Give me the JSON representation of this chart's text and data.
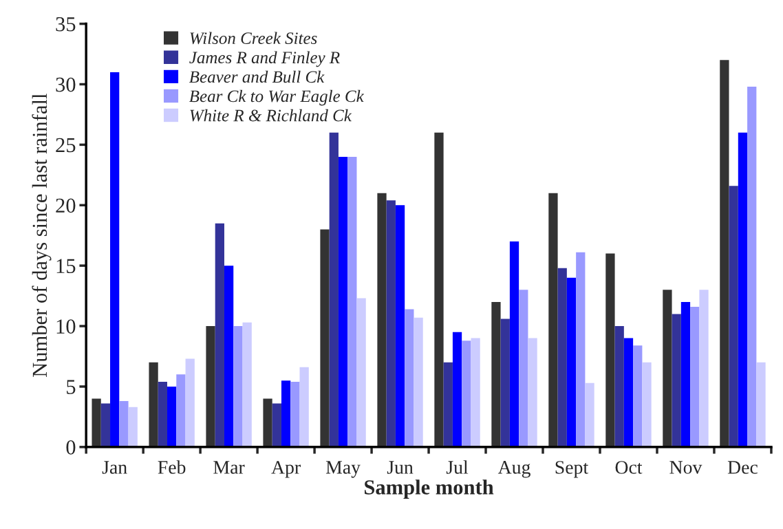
{
  "chart_data": {
    "type": "bar",
    "xlabel": "Sample month",
    "ylabel": "Number of days since last rainfall",
    "categories": [
      "Jan",
      "Feb",
      "Mar",
      "Apr",
      "May",
      "Jun",
      "Jul",
      "Aug",
      "Sept",
      "Oct",
      "Nov",
      "Dec"
    ],
    "series": [
      {
        "name": "Wilson Creek Sites",
        "color": "#333333",
        "values": [
          4,
          7,
          10,
          4,
          18,
          21,
          26,
          12,
          21,
          16,
          13,
          32
        ]
      },
      {
        "name": "James R and Finley R",
        "color": "#333399",
        "values": [
          3.6,
          5.4,
          18.5,
          3.6,
          26,
          20.4,
          7,
          10.6,
          14.8,
          10,
          11,
          21.6
        ]
      },
      {
        "name": "Beaver and Bull Ck",
        "color": "#0000ff",
        "values": [
          31,
          5,
          15,
          5.5,
          24,
          20,
          9.5,
          17,
          14,
          9,
          12,
          26
        ]
      },
      {
        "name": "Bear Ck to War Eagle Ck",
        "color": "#9999ff",
        "values": [
          3.8,
          6,
          10,
          5.4,
          24,
          11.4,
          8.8,
          13,
          16.1,
          8.4,
          11.6,
          29.8
        ]
      },
      {
        "name": "White R & Richland Ck",
        "color": "#ccccff",
        "values": [
          3.3,
          7.3,
          10.3,
          6.6,
          12.3,
          10.7,
          9,
          9,
          5.3,
          7,
          13,
          7
        ]
      }
    ],
    "ylim": [
      0,
      35
    ],
    "yticks": [
      0,
      5,
      10,
      15,
      20,
      25,
      30,
      35
    ],
    "grid": false,
    "legend": "top left"
  }
}
